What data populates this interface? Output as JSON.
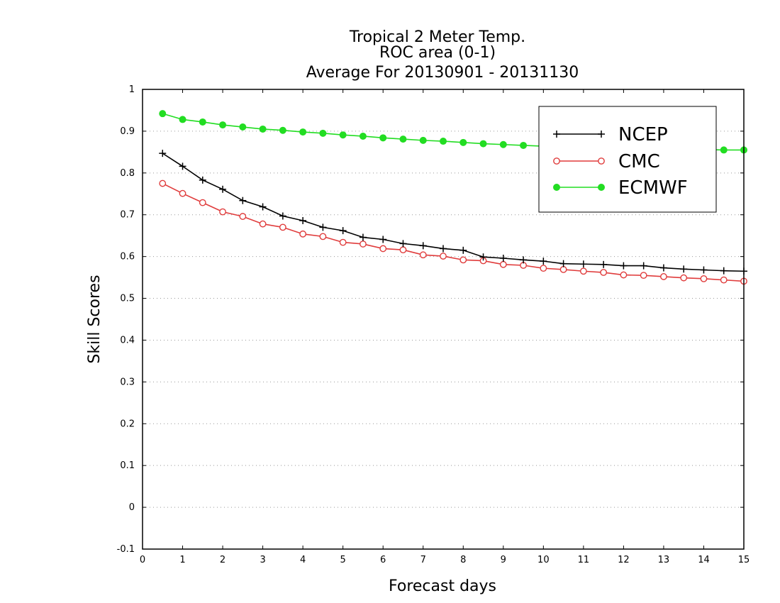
{
  "chart_data": {
    "type": "line",
    "title_lines": [
      "Tropical 2 Meter Temp.",
      "ROC area (0-1)",
      "Average For 20130901 - 20131130"
    ],
    "xlabel": "Forecast days",
    "ylabel": "Skill Scores",
    "xlim": [
      0,
      15
    ],
    "ylim": [
      -0.1,
      1
    ],
    "x_ticks": [
      0,
      1,
      2,
      3,
      4,
      5,
      6,
      7,
      8,
      9,
      10,
      11,
      12,
      13,
      14,
      15
    ],
    "x_tick_labels": [
      "0",
      "1",
      "2",
      "3",
      "4",
      "5",
      "6",
      "7",
      "8",
      "9",
      "10",
      "11",
      "12",
      "13",
      "14",
      "15"
    ],
    "y_ticks": [
      -0.1,
      0,
      0.1,
      0.2,
      0.3,
      0.4,
      0.5,
      0.6,
      0.7,
      0.8,
      0.9,
      1
    ],
    "y_tick_labels": [
      "-0.1",
      "0",
      "0.1",
      "0.2",
      "0.3",
      "0.4",
      "0.5",
      "0.6",
      "0.7",
      "0.8",
      "0.9",
      "1"
    ],
    "grid": "horizontal dotted",
    "legend_position": "top-right",
    "x": [
      0.5,
      1,
      1.5,
      2,
      2.5,
      3,
      3.5,
      4,
      4.5,
      5,
      5.5,
      6,
      6.5,
      7,
      7.5,
      8,
      8.5,
      9,
      9.5,
      10,
      10.5,
      11,
      11.5,
      12,
      12.5,
      13,
      13.5,
      14,
      14.5,
      15
    ],
    "series": [
      {
        "name": "NCEP",
        "color": "#000000",
        "marker": "plus",
        "values": [
          0.847,
          0.816,
          0.783,
          0.761,
          0.734,
          0.719,
          0.697,
          0.686,
          0.67,
          0.662,
          0.646,
          0.641,
          0.631,
          0.626,
          0.619,
          0.615,
          0.599,
          0.596,
          0.592,
          0.589,
          0.583,
          0.582,
          0.581,
          0.578,
          0.578,
          0.573,
          0.57,
          0.568,
          0.566,
          0.565
        ]
      },
      {
        "name": "CMC",
        "color": "#e03c3c",
        "marker": "open-circle",
        "values": [
          0.775,
          0.751,
          0.729,
          0.707,
          0.696,
          0.678,
          0.67,
          0.654,
          0.648,
          0.634,
          0.63,
          0.619,
          0.616,
          0.604,
          0.601,
          0.592,
          0.59,
          0.581,
          0.579,
          0.572,
          0.569,
          0.565,
          0.562,
          0.556,
          0.555,
          0.552,
          0.549,
          0.547,
          0.544,
          0.541
        ]
      },
      {
        "name": "ECMWF",
        "color": "#22dd22",
        "marker": "filled-circle",
        "values": [
          0.942,
          0.928,
          0.922,
          0.915,
          0.91,
          0.905,
          0.902,
          0.898,
          0.895,
          0.891,
          0.888,
          0.884,
          0.881,
          0.878,
          0.876,
          0.873,
          0.87,
          0.868,
          0.866,
          0.864,
          0.862,
          0.861,
          0.86,
          0.859,
          0.858,
          0.857,
          0.856,
          0.856,
          0.855,
          0.855
        ]
      }
    ]
  }
}
